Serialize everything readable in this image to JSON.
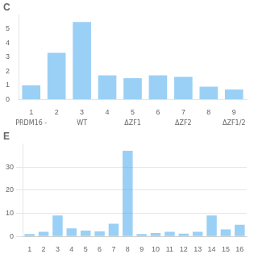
{
  "chart_data": [
    {
      "type": "bar",
      "title": "C",
      "categories": [
        "1",
        "2",
        "3",
        "4",
        "5",
        "6",
        "7",
        "8",
        "9"
      ],
      "values": [
        1.0,
        3.3,
        5.5,
        1.7,
        1.5,
        1.7,
        1.6,
        0.9,
        0.7
      ],
      "ylim": [
        0,
        6
      ],
      "yticks": [
        0,
        1,
        2,
        3,
        4,
        5
      ],
      "grid": false,
      "annotations": [
        {
          "text": "PRDM16 -",
          "category": "1"
        },
        {
          "text": "WT",
          "category": "3"
        },
        {
          "text": "ΔZF1",
          "category": "5"
        },
        {
          "text": "ΔZF2",
          "category": "7"
        },
        {
          "text": "ΔZF1/2",
          "category": "9"
        }
      ]
    },
    {
      "type": "bar",
      "title": "E",
      "categories": [
        "1",
        "2",
        "3",
        "4",
        "5",
        "6",
        "7",
        "8",
        "9",
        "10",
        "11",
        "12",
        "13",
        "14",
        "15",
        "16"
      ],
      "values": [
        1.0,
        2.0,
        9.0,
        3.5,
        2.5,
        2.2,
        5.5,
        37.0,
        1.0,
        1.5,
        2.0,
        1.2,
        2.0,
        9.0,
        3.0,
        5.0
      ],
      "ylim": [
        0,
        40
      ],
      "yticks": [
        0,
        10,
        20,
        30
      ],
      "grid": true
    }
  ]
}
